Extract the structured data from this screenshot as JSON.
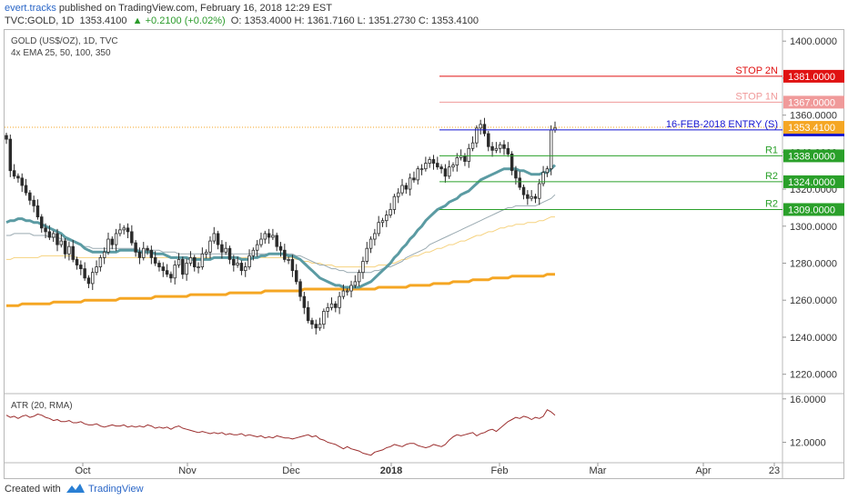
{
  "header": {
    "author": "evert.tracks",
    "published": "published on TradingView.com, February 16, 2018 12:29 EST",
    "symbol": "TVC:GOLD, 1D",
    "last": "1353.4100",
    "change": "▲ +0.2100 (+0.02%)",
    "ohlc": "O: 1353.4000 H: 1361.7160 L: 1351.2730 C: 1353.4100"
  },
  "footer": {
    "created_with": "Created with",
    "brand": "TradingView"
  },
  "colors": {
    "candle": "#2b2b2b",
    "ema25": "#5b9ba3",
    "ema50": "#9aaab1",
    "ema100": "#f6d27f",
    "ema350": "#f5a623",
    "atr": "#9b2d2d",
    "red": "#e01212",
    "pink": "#f09a9a",
    "blue": "#1515d0",
    "green": "#2aa02a",
    "orange": "#f5a623"
  },
  "chart_data": [
    {
      "type": "candlestick",
      "title": "GOLD (US$/OZ), 1D, TVC",
      "indicator_label": "4x EMA 25, 50, 100, 350",
      "x_ticks": [
        "Oct",
        "Nov",
        "Dec",
        "2018",
        "Feb",
        "Mar",
        "Apr",
        "23"
      ],
      "y_ticks": [
        "1400.0000",
        "1380.0000",
        "1360.0000",
        "1340.0000",
        "1320.0000",
        "1300.0000",
        "1280.0000",
        "1260.0000",
        "1240.0000",
        "1220.0000"
      ],
      "ylim": [
        1210,
        1406
      ],
      "levels": [
        {
          "label": "STOP 2N",
          "value": 1381.0,
          "tag": "1381.0000",
          "color": "red"
        },
        {
          "label": "STOP 1N",
          "value": 1367.0,
          "tag": "1367.0000",
          "color": "pink"
        },
        {
          "label": "16-FEB-2018 ENTRY (S)",
          "value": 1352.0,
          "tag": "1352.0000",
          "color": "blue"
        },
        {
          "label": "R1",
          "value": 1338.0,
          "tag": "1338.0000",
          "color": "green"
        },
        {
          "label": "R2",
          "value": 1324.0,
          "tag": "1324.0000",
          "color": "green"
        },
        {
          "label": "R2",
          "value": 1309.0,
          "tag": "1309.0000",
          "color": "green"
        }
      ],
      "last_price": "1353.4100",
      "close": [
        1347,
        1330,
        1327,
        1326,
        1322,
        1318,
        1314,
        1311,
        1305,
        1299,
        1297,
        1294,
        1296,
        1290,
        1292,
        1285,
        1289,
        1282,
        1279,
        1277,
        1272,
        1269,
        1275,
        1278,
        1283,
        1286,
        1293,
        1290,
        1296,
        1298,
        1299,
        1297,
        1291,
        1286,
        1283,
        1288,
        1287,
        1283,
        1280,
        1278,
        1276,
        1274,
        1272,
        1279,
        1282,
        1274,
        1280,
        1283,
        1278,
        1278,
        1285,
        1286,
        1292,
        1296,
        1290,
        1286,
        1288,
        1282,
        1279,
        1280,
        1276,
        1278,
        1284,
        1287,
        1290,
        1293,
        1296,
        1294,
        1295,
        1289,
        1287,
        1282,
        1282,
        1276,
        1270,
        1262,
        1256,
        1249,
        1247,
        1245,
        1247,
        1254,
        1256,
        1258,
        1256,
        1262,
        1265,
        1265,
        1268,
        1270,
        1275,
        1281,
        1288,
        1293,
        1296,
        1302,
        1303,
        1306,
        1309,
        1316,
        1318,
        1322,
        1320,
        1326,
        1325,
        1331,
        1331,
        1334,
        1336,
        1334,
        1332,
        1331,
        1327,
        1332,
        1333,
        1337,
        1338,
        1335,
        1342,
        1345,
        1353,
        1355,
        1350,
        1343,
        1341,
        1342,
        1344,
        1342,
        1339,
        1330,
        1326,
        1321,
        1317,
        1315,
        1316,
        1315,
        1323,
        1329,
        1331,
        1352,
        1353
      ],
      "ema25": [
        1302,
        1303,
        1303,
        1304,
        1304,
        1303,
        1303,
        1302,
        1302,
        1301,
        1300,
        1299,
        1298,
        1297,
        1296,
        1294,
        1293,
        1292,
        1291,
        1290,
        1288,
        1287,
        1286,
        1286,
        1286,
        1286,
        1286,
        1286,
        1286,
        1287,
        1287,
        1287,
        1287,
        1287,
        1286,
        1286,
        1286,
        1286,
        1285,
        1285,
        1285,
        1284,
        1283,
        1283,
        1283,
        1283,
        1283,
        1282,
        1282,
        1282,
        1282,
        1282,
        1282,
        1283,
        1283,
        1283,
        1283,
        1283,
        1283,
        1283,
        1282,
        1282,
        1282,
        1283,
        1283,
        1284,
        1284,
        1285,
        1285,
        1285,
        1285,
        1285,
        1284,
        1284,
        1283,
        1282,
        1280,
        1278,
        1276,
        1274,
        1272,
        1271,
        1270,
        1269,
        1268,
        1268,
        1267,
        1267,
        1267,
        1267,
        1267,
        1268,
        1269,
        1270,
        1272,
        1274,
        1276,
        1278,
        1280,
        1283,
        1285,
        1288,
        1290,
        1293,
        1295,
        1298,
        1300,
        1303,
        1305,
        1307,
        1309,
        1310,
        1311,
        1313,
        1314,
        1315,
        1317,
        1318,
        1319,
        1321,
        1323,
        1325,
        1326,
        1327,
        1328,
        1329,
        1330,
        1331,
        1331,
        1331,
        1331,
        1330,
        1330,
        1329,
        1328,
        1328,
        1328,
        1329,
        1329,
        1331,
        1333
      ],
      "ema50": [
        1295,
        1295,
        1296,
        1296,
        1296,
        1296,
        1296,
        1295,
        1295,
        1295,
        1295,
        1294,
        1294,
        1294,
        1293,
        1293,
        1292,
        1292,
        1291,
        1290,
        1289,
        1289,
        1288,
        1288,
        1288,
        1288,
        1288,
        1288,
        1288,
        1288,
        1288,
        1288,
        1288,
        1288,
        1287,
        1287,
        1287,
        1287,
        1287,
        1287,
        1286,
        1286,
        1286,
        1286,
        1285,
        1285,
        1285,
        1285,
        1285,
        1285,
        1285,
        1285,
        1285,
        1285,
        1285,
        1285,
        1285,
        1285,
        1285,
        1285,
        1285,
        1285,
        1285,
        1285,
        1285,
        1285,
        1285,
        1285,
        1285,
        1285,
        1285,
        1285,
        1285,
        1285,
        1284,
        1284,
        1283,
        1282,
        1281,
        1280,
        1279,
        1279,
        1278,
        1277,
        1277,
        1276,
        1276,
        1275,
        1275,
        1275,
        1275,
        1275,
        1275,
        1275,
        1276,
        1276,
        1277,
        1278,
        1278,
        1279,
        1280,
        1281,
        1283,
        1284,
        1285,
        1286,
        1287,
        1288,
        1290,
        1291,
        1292,
        1293,
        1294,
        1295,
        1296,
        1297,
        1298,
        1299,
        1300,
        1301,
        1302,
        1303,
        1304,
        1305,
        1306,
        1307,
        1308,
        1309,
        1310,
        1310,
        1311,
        1311,
        1311,
        1311,
        1311,
        1311,
        1312,
        1313,
        1314,
        1315,
        1317
      ],
      "ema100": [
        1282,
        1282,
        1283,
        1283,
        1283,
        1283,
        1283,
        1283,
        1283,
        1284,
        1284,
        1284,
        1284,
        1284,
        1284,
        1284,
        1284,
        1284,
        1283,
        1283,
        1283,
        1283,
        1283,
        1283,
        1283,
        1283,
        1283,
        1283,
        1283,
        1283,
        1283,
        1283,
        1283,
        1283,
        1283,
        1283,
        1283,
        1283,
        1283,
        1283,
        1283,
        1283,
        1283,
        1283,
        1283,
        1283,
        1283,
        1283,
        1283,
        1283,
        1283,
        1283,
        1283,
        1283,
        1283,
        1283,
        1283,
        1283,
        1283,
        1283,
        1283,
        1283,
        1283,
        1283,
        1283,
        1283,
        1283,
        1283,
        1283,
        1283,
        1283,
        1283,
        1283,
        1283,
        1282,
        1282,
        1281,
        1281,
        1280,
        1280,
        1280,
        1279,
        1279,
        1279,
        1278,
        1278,
        1278,
        1278,
        1278,
        1278,
        1278,
        1278,
        1278,
        1278,
        1278,
        1279,
        1279,
        1279,
        1280,
        1280,
        1281,
        1282,
        1282,
        1283,
        1284,
        1284,
        1285,
        1286,
        1286,
        1287,
        1288,
        1288,
        1289,
        1290,
        1290,
        1291,
        1292,
        1292,
        1293,
        1294,
        1295,
        1295,
        1296,
        1297,
        1297,
        1298,
        1299,
        1299,
        1300,
        1300,
        1301,
        1301,
        1301,
        1302,
        1302,
        1302,
        1303,
        1303,
        1304,
        1305,
        1305
      ],
      "ema350": [
        1257,
        1257,
        1257,
        1257,
        1258,
        1258,
        1258,
        1258,
        1258,
        1258,
        1258,
        1258,
        1259,
        1259,
        1259,
        1259,
        1259,
        1259,
        1259,
        1259,
        1260,
        1260,
        1260,
        1260,
        1260,
        1260,
        1260,
        1260,
        1260,
        1261,
        1261,
        1261,
        1261,
        1261,
        1261,
        1261,
        1261,
        1261,
        1262,
        1262,
        1262,
        1262,
        1262,
        1262,
        1262,
        1262,
        1262,
        1263,
        1263,
        1263,
        1263,
        1263,
        1263,
        1263,
        1263,
        1263,
        1263,
        1264,
        1264,
        1264,
        1264,
        1264,
        1264,
        1264,
        1264,
        1264,
        1265,
        1265,
        1265,
        1265,
        1265,
        1265,
        1265,
        1265,
        1265,
        1265,
        1266,
        1266,
        1266,
        1266,
        1266,
        1266,
        1266,
        1266,
        1266,
        1266,
        1266,
        1266,
        1266,
        1266,
        1266,
        1266,
        1266,
        1266,
        1266,
        1267,
        1267,
        1267,
        1267,
        1267,
        1267,
        1267,
        1267,
        1268,
        1268,
        1268,
        1268,
        1268,
        1268,
        1269,
        1269,
        1269,
        1269,
        1269,
        1270,
        1270,
        1270,
        1270,
        1270,
        1271,
        1271,
        1271,
        1271,
        1271,
        1272,
        1272,
        1272,
        1272,
        1272,
        1273,
        1273,
        1273,
        1273,
        1273,
        1273,
        1273,
        1273,
        1273,
        1274,
        1274,
        1274
      ]
    },
    {
      "type": "line",
      "title": "ATR (20, RMA)",
      "y_ticks": [
        "16.0000",
        "12.0000"
      ],
      "ylim": [
        10.2,
        16.4
      ],
      "values": [
        14.5,
        14.3,
        14.4,
        14.2,
        14.4,
        14.5,
        14.3,
        14.4,
        14.6,
        14.5,
        14.3,
        14.2,
        14.0,
        14.1,
        13.9,
        13.9,
        14.0,
        13.8,
        13.8,
        13.9,
        13.7,
        13.6,
        13.6,
        13.7,
        13.5,
        13.4,
        13.5,
        13.6,
        13.5,
        13.5,
        13.6,
        13.4,
        13.5,
        13.4,
        13.5,
        13.4,
        13.6,
        13.5,
        13.3,
        13.4,
        13.3,
        13.4,
        13.2,
        13.4,
        13.5,
        13.3,
        13.2,
        13.1,
        13.0,
        12.9,
        13.0,
        12.9,
        12.8,
        12.9,
        12.8,
        12.9,
        12.7,
        12.8,
        12.7,
        12.7,
        12.8,
        12.6,
        12.7,
        12.6,
        12.5,
        12.6,
        12.4,
        12.5,
        12.4,
        12.6,
        12.5,
        12.4,
        12.4,
        12.3,
        12.4,
        12.5,
        12.6,
        12.7,
        12.5,
        12.6,
        12.3,
        12.2,
        12.0,
        11.9,
        11.8,
        11.6,
        11.4,
        11.6,
        11.4,
        11.3,
        11.2,
        11.0,
        10.9,
        10.8,
        11.1,
        11.2,
        11.3,
        11.5,
        11.6,
        11.8,
        11.7,
        11.6,
        11.8,
        11.9,
        11.9,
        11.7,
        11.6,
        11.5,
        11.6,
        11.8,
        11.7,
        11.6,
        11.8,
        12.2,
        12.5,
        12.7,
        12.6,
        12.7,
        12.8,
        12.9,
        12.6,
        12.8,
        12.9,
        13.1,
        13.2,
        13.0,
        13.3,
        13.6,
        13.9,
        14.1,
        14.3,
        14.2,
        14.4,
        14.3,
        14.1,
        14.3,
        14.2,
        14.4,
        15.0,
        14.8,
        14.5
      ]
    }
  ]
}
